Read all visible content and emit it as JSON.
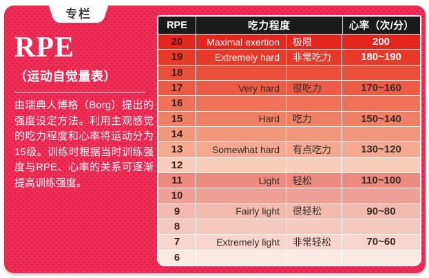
{
  "tab": {
    "label": "专栏"
  },
  "panel": {
    "title": "RPE",
    "subtitle": "（运动自觉量表）",
    "description": "由瑞典人博格（Borg）提出的强度设定方法。利用主观感觉的吃力程度和心率将运动分为15级。训练时根据当时训练强度与RPE、心率的关系可逐渐提高训练强度。"
  },
  "table": {
    "headers": [
      "RPE",
      "吃力程度",
      "心率（次/分）"
    ],
    "rows": [
      {
        "rpe": "20",
        "en": "Maximal exertion",
        "zh": "极限",
        "hr": "200",
        "bg": "#e5261d",
        "light": true
      },
      {
        "rpe": "19",
        "en": "Extremely hard",
        "zh": "非常吃力",
        "hr": "180~190",
        "bg": "#e73a29",
        "light": true
      },
      {
        "rpe": "18",
        "en": "",
        "zh": "",
        "hr": "",
        "bg": "#e94f3a",
        "light": false
      },
      {
        "rpe": "17",
        "en": "Very hard",
        "zh": "很吃力",
        "hr": "170~160",
        "bg": "#ea5c45",
        "light": false
      },
      {
        "rpe": "16",
        "en": "",
        "zh": "",
        "hr": "",
        "bg": "#ed7257",
        "light": false
      },
      {
        "rpe": "15",
        "en": "Hard",
        "zh": "吃力",
        "hr": "150~140",
        "bg": "#ee8165",
        "light": false
      },
      {
        "rpe": "14",
        "en": "",
        "zh": "",
        "hr": "",
        "bg": "#f1977d",
        "light": false
      },
      {
        "rpe": "13",
        "en": "Somewhat hard",
        "zh": "有点吃力",
        "hr": "130~120",
        "bg": "#f4aa90",
        "light": false
      },
      {
        "rpe": "12",
        "en": "",
        "zh": "",
        "hr": "",
        "bg": "#f8ccba",
        "light": false
      },
      {
        "rpe": "11",
        "en": "Light",
        "zh": "轻松",
        "hr": "110~100",
        "bg": "#eb8b80",
        "light": false
      },
      {
        "rpe": "10",
        "en": "",
        "zh": "",
        "hr": "",
        "bg": "#efa094",
        "light": false
      },
      {
        "rpe": "9",
        "en": "Fairly light",
        "zh": "很轻松",
        "hr": "90~80",
        "bg": "#f3bbaf",
        "light": false
      },
      {
        "rpe": "8",
        "en": "",
        "zh": "",
        "hr": "",
        "bg": "#f6c9be",
        "light": false
      },
      {
        "rpe": "7",
        "en": "Extremely light",
        "zh": "非常轻松",
        "hr": "70~60",
        "bg": "#f8d6cd",
        "light": false
      },
      {
        "rpe": "6",
        "en": "",
        "zh": "",
        "hr": "",
        "bg": "#fbeae3",
        "light": false
      }
    ]
  },
  "colors": {
    "card_background": "#ee2e55",
    "card_dots": "#d91a44",
    "table_header_background": "#1a1a1a",
    "table_header_text": "#ffffff",
    "dark_text": "#3a2b26",
    "light_text": "#ffffff"
  },
  "chart_data": {
    "type": "table",
    "title": "RPE（运动自觉量表）",
    "columns": [
      "RPE",
      "吃力程度（英文）",
      "吃力程度（中文）",
      "心率（次/分）"
    ],
    "rows": [
      [
        "20",
        "Maximal exertion",
        "极限",
        "200"
      ],
      [
        "19",
        "Extremely hard",
        "非常吃力",
        "180~190"
      ],
      [
        "18",
        "",
        "",
        ""
      ],
      [
        "17",
        "Very hard",
        "很吃力",
        "170~160"
      ],
      [
        "16",
        "",
        "",
        ""
      ],
      [
        "15",
        "Hard",
        "吃力",
        "150~140"
      ],
      [
        "14",
        "",
        "",
        ""
      ],
      [
        "13",
        "Somewhat hard",
        "有点吃力",
        "130~120"
      ],
      [
        "12",
        "",
        "",
        ""
      ],
      [
        "11",
        "Light",
        "轻松",
        "110~100"
      ],
      [
        "10",
        "",
        "",
        ""
      ],
      [
        "9",
        "Fairly light",
        "很轻松",
        "90~80"
      ],
      [
        "8",
        "",
        "",
        ""
      ],
      [
        "7",
        "Extremely light",
        "非常轻松",
        "70~60"
      ],
      [
        "6",
        "",
        "",
        ""
      ]
    ]
  }
}
